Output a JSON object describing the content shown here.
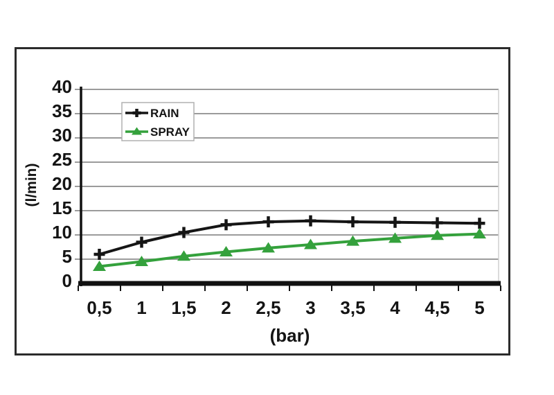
{
  "chart_data": {
    "type": "line",
    "x": [
      0.5,
      1,
      1.5,
      2,
      2.5,
      3,
      3.5,
      4,
      4.5,
      5
    ],
    "xtick_labels": [
      "0,5",
      "1",
      "1,5",
      "2",
      "2,5",
      "3",
      "3,5",
      "4",
      "4,5",
      "5"
    ],
    "yticks": [
      0,
      5,
      10,
      15,
      20,
      25,
      30,
      35,
      40
    ],
    "ylim": [
      0,
      40
    ],
    "xlabel": "(bar)",
    "ylabel": "(l/min)",
    "grid": "horizontal",
    "legend_position": "top-left-inside",
    "series": [
      {
        "name": "RAIN",
        "color": "#151515",
        "marker": "plus",
        "values": [
          6,
          8.5,
          10.5,
          12.1,
          12.7,
          12.9,
          12.7,
          12.6,
          12.5,
          12.4
        ]
      },
      {
        "name": "SPRAY",
        "color": "#34a13c",
        "marker": "triangle",
        "values": [
          3.5,
          4.5,
          5.6,
          6.5,
          7.3,
          8,
          8.7,
          9.3,
          9.9,
          10.2
        ]
      }
    ]
  },
  "colors": {
    "gridline": "#9b9b9b",
    "plot_right_edge": "#cfcfcf",
    "axis": "#111111",
    "frame": "#2b2b2b",
    "legend_border": "#b0b0b0",
    "legend_bg": "#ffffff",
    "tick_label": "#141414"
  }
}
